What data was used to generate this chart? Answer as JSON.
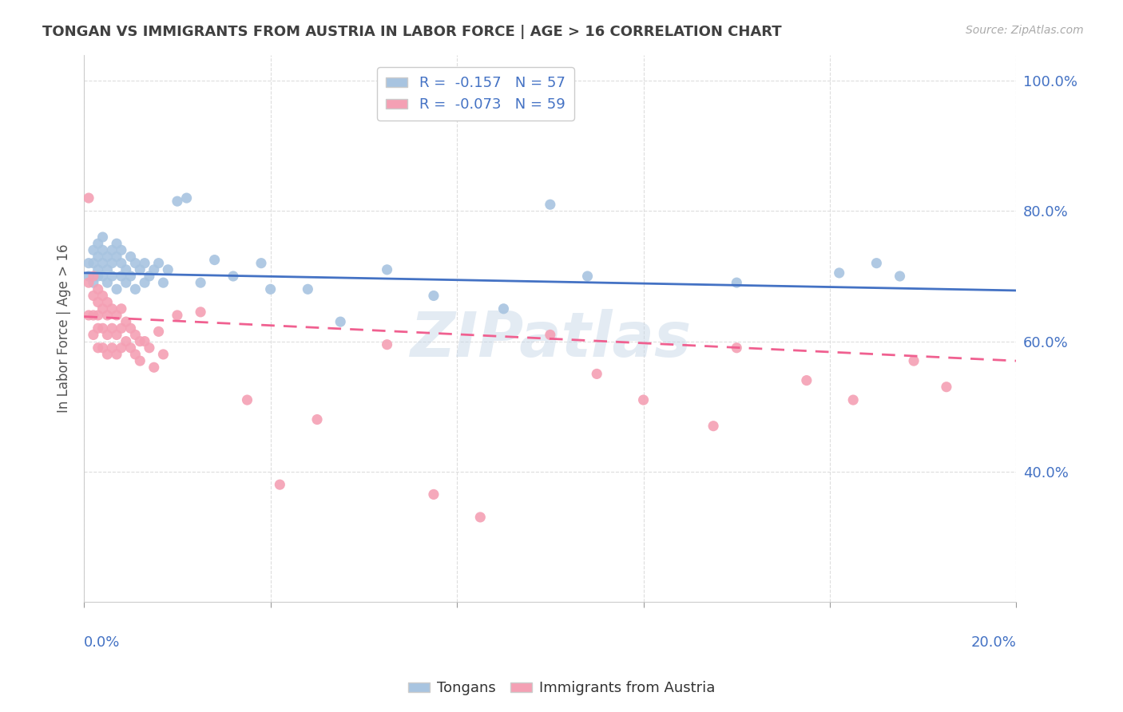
{
  "title": "TONGAN VS IMMIGRANTS FROM AUSTRIA IN LABOR FORCE | AGE > 16 CORRELATION CHART",
  "source": "Source: ZipAtlas.com",
  "ylabel": "In Labor Force | Age > 16",
  "xlim": [
    0.0,
    0.2
  ],
  "ylim": [
    0.2,
    1.04
  ],
  "watermark": "ZIPatlas",
  "tongans_R": -0.157,
  "tongans_N": 57,
  "austria_R": -0.073,
  "austria_N": 59,
  "tongans_color": "#a8c4e0",
  "austria_color": "#f4a0b4",
  "tongans_line_color": "#4472c4",
  "austria_line_color": "#f06090",
  "tongans_line_x0": 0.0,
  "tongans_line_y0": 0.705,
  "tongans_line_x1": 0.2,
  "tongans_line_y1": 0.678,
  "austria_line_x0": 0.0,
  "austria_line_y0": 0.638,
  "austria_line_x1": 0.2,
  "austria_line_y1": 0.57,
  "tongans_scatter_x": [
    0.001,
    0.001,
    0.002,
    0.002,
    0.002,
    0.003,
    0.003,
    0.003,
    0.003,
    0.004,
    0.004,
    0.004,
    0.004,
    0.005,
    0.005,
    0.005,
    0.006,
    0.006,
    0.006,
    0.007,
    0.007,
    0.007,
    0.008,
    0.008,
    0.008,
    0.009,
    0.009,
    0.01,
    0.01,
    0.011,
    0.011,
    0.012,
    0.013,
    0.013,
    0.014,
    0.015,
    0.016,
    0.017,
    0.018,
    0.02,
    0.022,
    0.025,
    0.028,
    0.032,
    0.038,
    0.04,
    0.048,
    0.055,
    0.065,
    0.075,
    0.09,
    0.1,
    0.108,
    0.14,
    0.162,
    0.17,
    0.175
  ],
  "tongans_scatter_y": [
    0.72,
    0.7,
    0.74,
    0.72,
    0.69,
    0.75,
    0.73,
    0.71,
    0.7,
    0.76,
    0.74,
    0.72,
    0.7,
    0.73,
    0.71,
    0.69,
    0.74,
    0.72,
    0.7,
    0.75,
    0.73,
    0.68,
    0.74,
    0.72,
    0.7,
    0.71,
    0.69,
    0.73,
    0.7,
    0.72,
    0.68,
    0.71,
    0.72,
    0.69,
    0.7,
    0.71,
    0.72,
    0.69,
    0.71,
    0.815,
    0.82,
    0.69,
    0.725,
    0.7,
    0.72,
    0.68,
    0.68,
    0.63,
    0.71,
    0.67,
    0.65,
    0.81,
    0.7,
    0.69,
    0.705,
    0.72,
    0.7
  ],
  "austria_scatter_x": [
    0.001,
    0.001,
    0.001,
    0.002,
    0.002,
    0.002,
    0.002,
    0.003,
    0.003,
    0.003,
    0.003,
    0.003,
    0.004,
    0.004,
    0.004,
    0.004,
    0.005,
    0.005,
    0.005,
    0.005,
    0.006,
    0.006,
    0.006,
    0.007,
    0.007,
    0.007,
    0.008,
    0.008,
    0.008,
    0.009,
    0.009,
    0.01,
    0.01,
    0.011,
    0.011,
    0.012,
    0.012,
    0.013,
    0.014,
    0.015,
    0.016,
    0.017,
    0.02,
    0.025,
    0.035,
    0.042,
    0.05,
    0.065,
    0.075,
    0.085,
    0.1,
    0.11,
    0.12,
    0.135,
    0.14,
    0.155,
    0.165,
    0.178,
    0.185
  ],
  "austria_scatter_y": [
    0.82,
    0.69,
    0.64,
    0.7,
    0.67,
    0.64,
    0.61,
    0.68,
    0.66,
    0.64,
    0.62,
    0.59,
    0.67,
    0.65,
    0.62,
    0.59,
    0.66,
    0.64,
    0.61,
    0.58,
    0.65,
    0.62,
    0.59,
    0.64,
    0.61,
    0.58,
    0.65,
    0.62,
    0.59,
    0.63,
    0.6,
    0.62,
    0.59,
    0.61,
    0.58,
    0.6,
    0.57,
    0.6,
    0.59,
    0.56,
    0.615,
    0.58,
    0.64,
    0.645,
    0.51,
    0.38,
    0.48,
    0.595,
    0.365,
    0.33,
    0.61,
    0.55,
    0.51,
    0.47,
    0.59,
    0.54,
    0.51,
    0.57,
    0.53
  ],
  "background_color": "#ffffff",
  "grid_color": "#dddddd",
  "title_color": "#404040",
  "tick_color": "#4472c4"
}
